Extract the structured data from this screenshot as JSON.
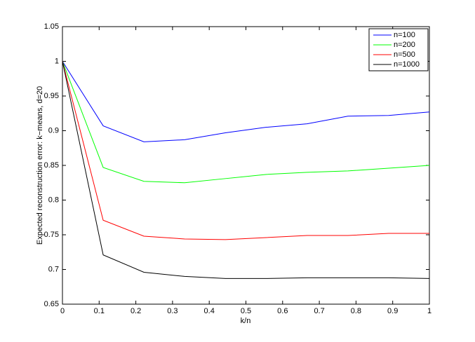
{
  "chart_data": {
    "type": "line",
    "x_label": "k/n",
    "y_label": "Expected reconstruction error: k−means, d=20",
    "x": [
      0,
      0.111,
      0.222,
      0.333,
      0.444,
      0.556,
      0.667,
      0.778,
      0.889,
      1
    ],
    "series": [
      {
        "name": "n=100",
        "color": "#0000ff",
        "values": [
          1.0,
          0.907,
          0.884,
          0.887,
          0.897,
          0.905,
          0.91,
          0.921,
          0.922,
          0.927
        ]
      },
      {
        "name": "n=200",
        "color": "#00ff00",
        "values": [
          1.0,
          0.847,
          0.827,
          0.825,
          0.831,
          0.837,
          0.84,
          0.842,
          0.846,
          0.85
        ]
      },
      {
        "name": "n=500",
        "color": "#ff0000",
        "values": [
          1.0,
          0.771,
          0.748,
          0.744,
          0.743,
          0.746,
          0.749,
          0.749,
          0.752,
          0.752
        ]
      },
      {
        "name": "n=1000",
        "color": "#000000",
        "values": [
          1.0,
          0.721,
          0.696,
          0.69,
          0.687,
          0.687,
          0.688,
          0.688,
          0.688,
          0.687
        ]
      }
    ],
    "xlim": [
      0,
      1
    ],
    "xticks": [
      0,
      0.1,
      0.2,
      0.3,
      0.4,
      0.5,
      0.6,
      0.7,
      0.8,
      0.9,
      1
    ],
    "ylim": [
      0.65,
      1.05
    ],
    "yticks": [
      0.65,
      0.7,
      0.75,
      0.8,
      0.85,
      0.9,
      0.95,
      1,
      1.05
    ],
    "grid": false,
    "legend": "top-right"
  }
}
